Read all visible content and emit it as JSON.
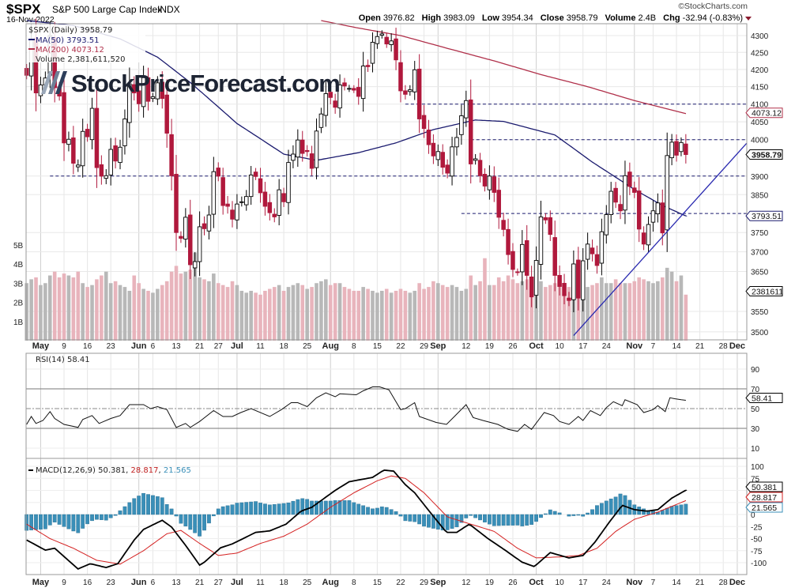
{
  "header": {
    "symbol": "$SPX",
    "name": "S&P 500 Large Cap Index",
    "exchange": "INDX",
    "date": "16-Nov-2022",
    "copyright": "©StockCharts.com",
    "open_label": "Open",
    "open": "3976.82",
    "high_label": "High",
    "high": "3983.09",
    "low_label": "Low",
    "low": "3954.34",
    "close_label": "Close",
    "close": "3958.79",
    "volume_label": "Volume",
    "volume": "2.4B",
    "chg_label": "Chg",
    "chg": "-32.94 (-0.83%)"
  },
  "logo_text": "StockPriceForecast.com",
  "colors": {
    "up": "#000000",
    "down": "#b0183c",
    "ma50": "#1a1a6e",
    "ma200": "#b0304a",
    "volume_up": "#b8b8b8",
    "volume_down": "#e8b4bc",
    "macd": "#000000",
    "signal": "#d42020",
    "histogram": "#3a8fb8",
    "trendline": "#2a2ab0"
  },
  "chart_data": [
    {
      "type": "candlestick",
      "title": "$SPX (Daily) 3958.79",
      "legend": {
        "price": "$SPX (Daily) 3958.79",
        "ma50": "MA(50) 3793.51",
        "ma200": "MA(200) 4073.12",
        "volume": "Volume 2,381,611,520"
      },
      "y_scale": "log",
      "ylim": [
        3480,
        4340
      ],
      "y_ticks": [
        "4300",
        "4250",
        "4200",
        "4150",
        "4100",
        "4050",
        "4000",
        "3900",
        "3850",
        "3750",
        "3700",
        "3650",
        "3550",
        "3500"
      ],
      "volume_ticks": [
        "5B",
        "4B",
        "3B",
        "2B",
        "1B"
      ],
      "price_boxes": {
        "ma200": "4073.12",
        "close": "3958.79",
        "ma50": "3793.51",
        "volume": "2381611"
      },
      "x_ticks": [
        {
          "label": "May",
          "i": 3,
          "bold": true
        },
        {
          "label": "9",
          "i": 8
        },
        {
          "label": "16",
          "i": 13
        },
        {
          "label": "23",
          "i": 18
        },
        {
          "label": "Jun",
          "i": 24,
          "bold": true
        },
        {
          "label": "6",
          "i": 27
        },
        {
          "label": "13",
          "i": 32
        },
        {
          "label": "21",
          "i": 37
        },
        {
          "label": "27",
          "i": 41
        },
        {
          "label": "Jul",
          "i": 45,
          "bold": true
        },
        {
          "label": "11",
          "i": 50
        },
        {
          "label": "18",
          "i": 55
        },
        {
          "label": "25",
          "i": 60
        },
        {
          "label": "Aug",
          "i": 65,
          "bold": true
        },
        {
          "label": "8",
          "i": 70
        },
        {
          "label": "15",
          "i": 75
        },
        {
          "label": "22",
          "i": 80
        },
        {
          "label": "29",
          "i": 85
        },
        {
          "label": "Sep",
          "i": 88,
          "bold": true
        },
        {
          "label": "12",
          "i": 94
        },
        {
          "label": "19",
          "i": 99
        },
        {
          "label": "26",
          "i": 104
        },
        {
          "label": "Oct",
          "i": 109,
          "bold": true
        },
        {
          "label": "10",
          "i": 114
        },
        {
          "label": "17",
          "i": 119
        },
        {
          "label": "24",
          "i": 124
        },
        {
          "label": "Nov",
          "i": 130,
          "bold": true
        },
        {
          "label": "7",
          "i": 134
        },
        {
          "label": "14",
          "i": 139
        },
        {
          "label": "21",
          "i": 144
        },
        {
          "label": "28",
          "i": 149
        },
        {
          "label": "Dec",
          "i": 152,
          "bold": true
        }
      ],
      "close": [
        4183,
        4287,
        4132,
        4155,
        4175,
        4300,
        4147,
        4123,
        3991,
        4001,
        3935,
        3930,
        4023,
        4008,
        4088,
        3923,
        3900,
        3901,
        3973,
        3941,
        3979,
        4058,
        4158,
        4132,
        4101,
        4176,
        4108,
        4121,
        4161,
        4116,
        4018,
        3901,
        3750,
        3735,
        3790,
        3667,
        3675,
        3765,
        3760,
        3796,
        3912,
        3900,
        3821,
        3819,
        3785,
        3825,
        3831,
        3845,
        3903,
        3899,
        3855,
        3819,
        3802,
        3791,
        3863,
        3831,
        3937,
        3960,
        3999,
        3962,
        3967,
        3921,
        4024,
        4072,
        4130,
        4119,
        4091,
        4155,
        4152,
        4145,
        4140,
        4122,
        4210,
        4208,
        4280,
        4297,
        4305,
        4275,
        4284,
        4228,
        4138,
        4128,
        4141,
        4199,
        4058,
        4031,
        3986,
        3955,
        3967,
        3924,
        3908,
        3980,
        4006,
        4067,
        4110,
        3933,
        3947,
        3901,
        3873,
        3900,
        3856,
        3790,
        3758,
        3693,
        3655,
        3647,
        3719,
        3640,
        3586,
        3678,
        3791,
        3783,
        3745,
        3640,
        3612,
        3589,
        3577,
        3669,
        3583,
        3677,
        3720,
        3695,
        3665,
        3752,
        3797,
        3859,
        3830,
        3807,
        3901,
        3872,
        3856,
        3759,
        3720,
        3771,
        3807,
        3828,
        3749,
        3956,
        3993,
        3957,
        3992,
        3958.79
      ],
      "volume_b": [
        3.0,
        3.2,
        3.3,
        2.9,
        3.0,
        3.4,
        3.6,
        3.3,
        3.5,
        3.4,
        3.3,
        3.6,
        3.0,
        2.8,
        2.9,
        3.2,
        3.4,
        3.6,
        3.0,
        3.1,
        2.9,
        2.8,
        2.6,
        3.4,
        3.0,
        2.7,
        2.6,
        2.5,
        2.7,
        2.9,
        3.1,
        3.6,
        3.9,
        3.5,
        3.6,
        3.7,
        4.6,
        3.3,
        3.2,
        3.1,
        3.5,
        3.0,
        2.9,
        2.8,
        3.1,
        2.9,
        2.6,
        2.5,
        2.6,
        2.5,
        2.4,
        2.6,
        2.7,
        2.8,
        2.9,
        2.6,
        2.8,
        2.9,
        3.0,
        2.9,
        2.7,
        2.8,
        3.0,
        3.1,
        3.2,
        2.9,
        3.0,
        3.0,
        2.8,
        2.7,
        2.6,
        2.6,
        2.8,
        2.7,
        2.6,
        2.5,
        2.6,
        2.7,
        2.5,
        2.6,
        2.7,
        2.6,
        2.5,
        2.6,
        3.0,
        2.7,
        2.8,
        3.1,
        3.0,
        2.9,
        2.8,
        2.9,
        2.8,
        2.6,
        2.7,
        3.4,
        2.9,
        3.1,
        4.3,
        2.9,
        2.9,
        3.3,
        3.1,
        3.4,
        3.2,
        3.0,
        3.1,
        3.2,
        3.3,
        3.0,
        3.1,
        2.8,
        2.9,
        3.0,
        2.8,
        2.7,
        2.8,
        3.4,
        3.2,
        2.9,
        2.8,
        2.9,
        3.0,
        3.3,
        3.0,
        3.0,
        3.2,
        3.0,
        3.0,
        3.0,
        3.1,
        3.3,
        3.2,
        3.1,
        3.0,
        3.1,
        3.3,
        3.8,
        3.6,
        3.1,
        3.4,
        2.4
      ],
      "ma50": [
        [
          0,
          4345
        ],
        [
          10,
          4330
        ],
        [
          20,
          4290
        ],
        [
          28,
          4236
        ],
        [
          35,
          4162
        ],
        [
          45,
          4045
        ],
        [
          55,
          3960
        ],
        [
          62,
          3943
        ],
        [
          71,
          3964
        ],
        [
          79,
          3991
        ],
        [
          87,
          4028
        ],
        [
          96,
          4055
        ],
        [
          102,
          4051
        ],
        [
          113,
          4013
        ],
        [
          121,
          3938
        ],
        [
          130,
          3864
        ],
        [
          136,
          3821
        ],
        [
          141,
          3793.51
        ]
      ],
      "ma200": [
        [
          63,
          4345
        ],
        [
          70,
          4325
        ],
        [
          80,
          4300
        ],
        [
          90,
          4262
        ],
        [
          100,
          4225
        ],
        [
          110,
          4185
        ],
        [
          120,
          4150
        ],
        [
          130,
          4110
        ],
        [
          141,
          4073.12
        ]
      ],
      "support_resistance": [
        {
          "level": 4100,
          "from_i": 81
        },
        {
          "level": 4000,
          "from_i": 95
        },
        {
          "level": 3900,
          "from_i": 5
        },
        {
          "level": 3800,
          "from_i": 93
        }
      ],
      "trendline": [
        [
          117,
          3491
        ],
        [
          154,
          3990
        ]
      ]
    },
    {
      "type": "line",
      "title": "RSI(14) 58.41",
      "ylim": [
        0,
        100
      ],
      "y_ticks": [
        "90",
        "70",
        "50",
        "30",
        "10"
      ],
      "last_box": "58.41",
      "points": [
        [
          0,
          34
        ],
        [
          1,
          42
        ],
        [
          2,
          35
        ],
        [
          3.5,
          38
        ],
        [
          5,
          47
        ],
        [
          6,
          40
        ],
        [
          8,
          34
        ],
        [
          11,
          31
        ],
        [
          12,
          39
        ],
        [
          14,
          43
        ],
        [
          15.5,
          35
        ],
        [
          18,
          40
        ],
        [
          20,
          43
        ],
        [
          22,
          54
        ],
        [
          25,
          54
        ],
        [
          26.5,
          50
        ],
        [
          28,
          52
        ],
        [
          30,
          49
        ],
        [
          32,
          31
        ],
        [
          34,
          35
        ],
        [
          35,
          31
        ],
        [
          37,
          37
        ],
        [
          40,
          48
        ],
        [
          42,
          42
        ],
        [
          44,
          42
        ],
        [
          45.8,
          46
        ],
        [
          48,
          50
        ],
        [
          52,
          42
        ],
        [
          54.5,
          49
        ],
        [
          56.6,
          56
        ],
        [
          58,
          56
        ],
        [
          60,
          52
        ],
        [
          62,
          61
        ],
        [
          64,
          66
        ],
        [
          66,
          62
        ],
        [
          67,
          65
        ],
        [
          70.5,
          64
        ],
        [
          72,
          68
        ],
        [
          74,
          72
        ],
        [
          75.5,
          72
        ],
        [
          77.5,
          69
        ],
        [
          80,
          49
        ],
        [
          81,
          50
        ],
        [
          83,
          56
        ],
        [
          84,
          42
        ],
        [
          87.6,
          36
        ],
        [
          89.8,
          34
        ],
        [
          91.5,
          42
        ],
        [
          94,
          54
        ],
        [
          95.5,
          41
        ],
        [
          97.6,
          38
        ],
        [
          100.8,
          34
        ],
        [
          103,
          29
        ],
        [
          105,
          27
        ],
        [
          106.5,
          34
        ],
        [
          108,
          29
        ],
        [
          110.7,
          46
        ],
        [
          112.7,
          43
        ],
        [
          114,
          37
        ],
        [
          116,
          34
        ],
        [
          118,
          42
        ],
        [
          119,
          38
        ],
        [
          120.6,
          48
        ],
        [
          122.7,
          43
        ],
        [
          124,
          51
        ],
        [
          125.5,
          57
        ],
        [
          127.4,
          53
        ],
        [
          128,
          59
        ],
        [
          130.6,
          54
        ],
        [
          132,
          46
        ],
        [
          134,
          49
        ],
        [
          135,
          53
        ],
        [
          136.6,
          47
        ],
        [
          137.6,
          61
        ],
        [
          138.6,
          60
        ],
        [
          140,
          59
        ],
        [
          141,
          58.41
        ]
      ]
    },
    {
      "type": "line",
      "title": "MACD(12,26,9)",
      "legend": {
        "label": "MACD(12,26,9)",
        "macd": "50.381",
        "signal": "28.817",
        "histogram": "21.565"
      },
      "ylim": [
        -120,
        110
      ],
      "y_ticks": [
        "100",
        "75",
        "0",
        "-25",
        "-50",
        "-75",
        "-100"
      ],
      "boxes": {
        "macd": "50.381",
        "signal": "28.817",
        "histogram": "21.565"
      },
      "macd": [
        [
          0,
          -53
        ],
        [
          4,
          -74
        ],
        [
          6,
          -70
        ],
        [
          11,
          -113
        ],
        [
          13.6,
          -102
        ],
        [
          17,
          -110
        ],
        [
          19.5,
          -102
        ],
        [
          23,
          -53
        ],
        [
          25,
          -31
        ],
        [
          29,
          -12
        ],
        [
          31,
          -26
        ],
        [
          34,
          -64
        ],
        [
          37,
          -105
        ],
        [
          38,
          -99
        ],
        [
          41.5,
          -69
        ],
        [
          44,
          -61
        ],
        [
          49,
          -37
        ],
        [
          52,
          -34
        ],
        [
          55.5,
          -20
        ],
        [
          58.7,
          7
        ],
        [
          61,
          15
        ],
        [
          66,
          50
        ],
        [
          69,
          68
        ],
        [
          74,
          77
        ],
        [
          76.4,
          92
        ],
        [
          78.5,
          90
        ],
        [
          81,
          62
        ],
        [
          83,
          45
        ],
        [
          86.6,
          1
        ],
        [
          89.8,
          -37
        ],
        [
          92,
          -37
        ],
        [
          94.7,
          -20
        ],
        [
          98.4,
          -48
        ],
        [
          101.6,
          -69
        ],
        [
          106,
          -99
        ],
        [
          108.6,
          -108
        ],
        [
          112,
          -79
        ],
        [
          116,
          -90
        ],
        [
          119,
          -85
        ],
        [
          121.5,
          -58
        ],
        [
          124.7,
          -15
        ],
        [
          127.4,
          19
        ],
        [
          130,
          10
        ],
        [
          132.7,
          7
        ],
        [
          135,
          10
        ],
        [
          138,
          34
        ],
        [
          141,
          50.381
        ]
      ],
      "signal": [
        [
          0,
          -20
        ],
        [
          5,
          -50
        ],
        [
          10,
          -70
        ],
        [
          15,
          -95
        ],
        [
          20,
          -103
        ],
        [
          25,
          -75
        ],
        [
          30,
          -40
        ],
        [
          33,
          -33
        ],
        [
          37,
          -60
        ],
        [
          41,
          -85
        ],
        [
          45,
          -80
        ],
        [
          50,
          -60
        ],
        [
          55,
          -45
        ],
        [
          60,
          -20
        ],
        [
          65,
          15
        ],
        [
          70,
          45
        ],
        [
          75,
          70
        ],
        [
          78,
          80
        ],
        [
          81,
          75
        ],
        [
          85,
          45
        ],
        [
          90,
          -5
        ],
        [
          95,
          -20
        ],
        [
          100,
          -35
        ],
        [
          105,
          -70
        ],
        [
          109,
          -90
        ],
        [
          114,
          -88
        ],
        [
          118,
          -85
        ],
        [
          122,
          -70
        ],
        [
          126,
          -35
        ],
        [
          130,
          -10
        ],
        [
          135,
          5
        ],
        [
          141,
          28.817
        ]
      ]
    }
  ]
}
